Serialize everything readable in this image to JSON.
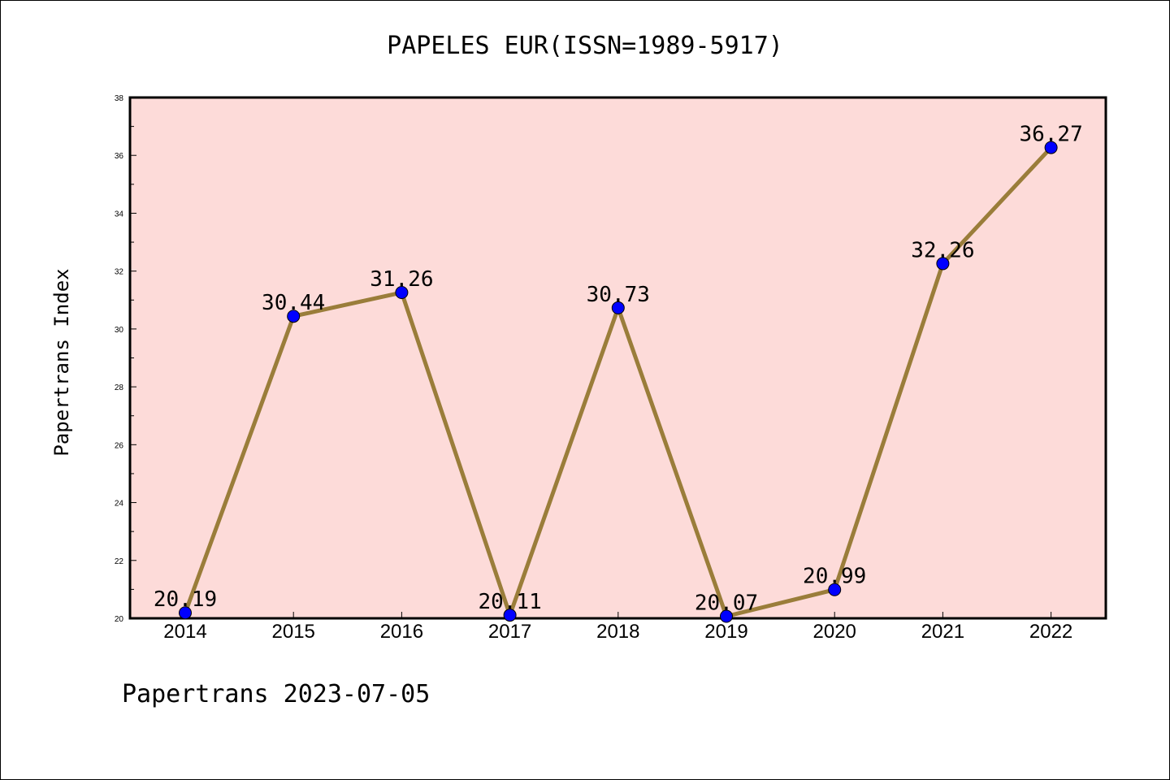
{
  "chart_data": {
    "type": "line",
    "title": "PAPELES EUR(ISSN=1989-5917)",
    "ylabel": "Papertrans Index",
    "xlabel": "",
    "footer": "Papertrans 2023-07-05",
    "categories": [
      "2014",
      "2015",
      "2016",
      "2017",
      "2018",
      "2019",
      "2020",
      "2021",
      "2022"
    ],
    "series": [
      {
        "values": [
          20.19,
          30.44,
          31.26,
          20.11,
          30.73,
          20.07,
          20.99,
          32.26,
          36.27
        ],
        "labels": [
          "20.19",
          "30.44",
          "31.26",
          "20.11",
          "30.73",
          "20.07",
          "20.99",
          "32.26",
          "36.27"
        ]
      }
    ],
    "ylim": [
      20,
      38
    ],
    "yticks": [
      "20",
      "22",
      "24",
      "26",
      "28",
      "30",
      "32",
      "34",
      "36",
      "38"
    ],
    "grid": false,
    "colors": {
      "plot_background": "#fddbd9",
      "line": "#9a7d3a",
      "marker": "#0000ff"
    }
  }
}
